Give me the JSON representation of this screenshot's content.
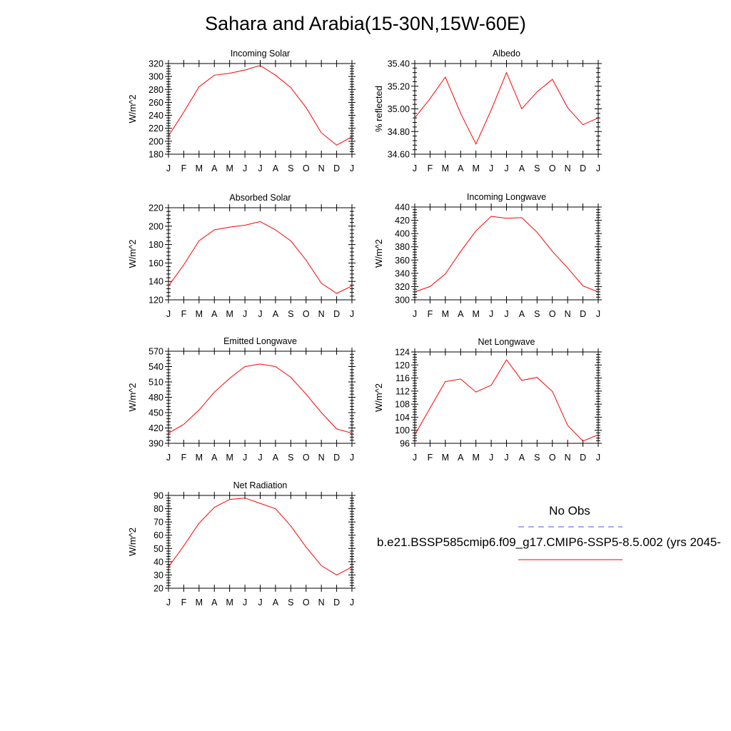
{
  "title": "Sahara and Arabia(15-30N,15W-60E)",
  "legend": {
    "obs_label": "No Obs",
    "obs_color": "#5050ff",
    "model_label": "b.e21.BSSP585cmip6.f09_g17.CMIP6-SSP5-8.5.002 (yrs 2045-",
    "model_color": "#ff0000"
  },
  "chart_data": [
    {
      "type": "line",
      "title": "Incoming Solar",
      "ylabel": "W/m^2",
      "x": [
        "J",
        "F",
        "M",
        "A",
        "M",
        "J",
        "J",
        "A",
        "S",
        "O",
        "N",
        "D",
        "J"
      ],
      "ylim": [
        180,
        320
      ],
      "yticks": [
        "180",
        "200",
        "220",
        "240",
        "260",
        "280",
        "300",
        "320"
      ],
      "series": [
        {
          "values": [
            208,
            245,
            284,
            302,
            305,
            310,
            317,
            302,
            283,
            252,
            213,
            194,
            207
          ]
        }
      ]
    },
    {
      "type": "line",
      "title": "Albedo",
      "ylabel": "% reflected",
      "x": [
        "J",
        "F",
        "M",
        "A",
        "M",
        "J",
        "J",
        "A",
        "S",
        "O",
        "N",
        "D",
        "J"
      ],
      "ylim": [
        34.6,
        35.4
      ],
      "yticks": [
        "34.60",
        "34.80",
        "35.00",
        "35.20",
        "35.40"
      ],
      "series": [
        {
          "values": [
            34.92,
            35.09,
            35.28,
            34.96,
            34.69,
            34.99,
            35.32,
            35.0,
            35.15,
            35.26,
            35.01,
            34.86,
            34.92
          ]
        }
      ]
    },
    {
      "type": "line",
      "title": "Absorbed Solar",
      "ylabel": "W/m^2",
      "x": [
        "J",
        "F",
        "M",
        "A",
        "M",
        "J",
        "J",
        "A",
        "S",
        "O",
        "N",
        "D",
        "J"
      ],
      "ylim": [
        120,
        220
      ],
      "yticks": [
        "120",
        "140",
        "160",
        "180",
        "200",
        "220"
      ],
      "series": [
        {
          "values": [
            135,
            158,
            184,
            196,
            199,
            201,
            205,
            196,
            184,
            163,
            138,
            127,
            135
          ]
        }
      ]
    },
    {
      "type": "line",
      "title": "Incoming Longwave",
      "ylabel": "W/m^2",
      "x": [
        "J",
        "F",
        "M",
        "A",
        "M",
        "J",
        "J",
        "A",
        "S",
        "O",
        "N",
        "D",
        "J"
      ],
      "ylim": [
        300,
        440
      ],
      "yticks": [
        "300",
        "320",
        "340",
        "360",
        "380",
        "400",
        "420",
        "440"
      ],
      "series": [
        {
          "values": [
            312,
            320,
            339,
            373,
            404,
            426,
            423,
            424,
            402,
            373,
            348,
            321,
            312
          ]
        }
      ]
    },
    {
      "type": "line",
      "title": "Emitted Longwave",
      "ylabel": "W/m^2",
      "x": [
        "J",
        "F",
        "M",
        "A",
        "M",
        "J",
        "J",
        "A",
        "S",
        "O",
        "N",
        "D",
        "J"
      ],
      "ylim": [
        390,
        570
      ],
      "yticks": [
        "390",
        "420",
        "450",
        "480",
        "510",
        "540",
        "570"
      ],
      "series": [
        {
          "values": [
            410,
            427,
            455,
            490,
            517,
            540,
            545,
            540,
            519,
            486,
            450,
            418,
            410
          ]
        }
      ]
    },
    {
      "type": "line",
      "title": "Net Longwave",
      "ylabel": "W/m^2",
      "x": [
        "J",
        "F",
        "M",
        "A",
        "M",
        "J",
        "J",
        "A",
        "S",
        "O",
        "N",
        "D",
        "J"
      ],
      "ylim": [
        96,
        124
      ],
      "yticks": [
        "96",
        "100",
        "104",
        "108",
        "112",
        "116",
        "120",
        "124"
      ],
      "series": [
        {
          "values": [
            98.6,
            106.8,
            114.9,
            115.7,
            111.7,
            113.8,
            121.6,
            115.3,
            116.2,
            111.9,
            101.5,
            96.7,
            98.6
          ]
        }
      ]
    },
    {
      "type": "line",
      "title": "Net Radiation",
      "ylabel": "W/m^2",
      "x": [
        "J",
        "F",
        "M",
        "A",
        "M",
        "J",
        "J",
        "A",
        "S",
        "O",
        "N",
        "D",
        "J"
      ],
      "ylim": [
        20,
        90
      ],
      "yticks": [
        "20",
        "30",
        "40",
        "50",
        "60",
        "70",
        "80",
        "90"
      ],
      "series": [
        {
          "values": [
            36,
            52,
            69,
            81,
            87,
            88,
            84,
            80,
            67,
            51,
            37,
            30,
            36
          ]
        }
      ]
    }
  ]
}
